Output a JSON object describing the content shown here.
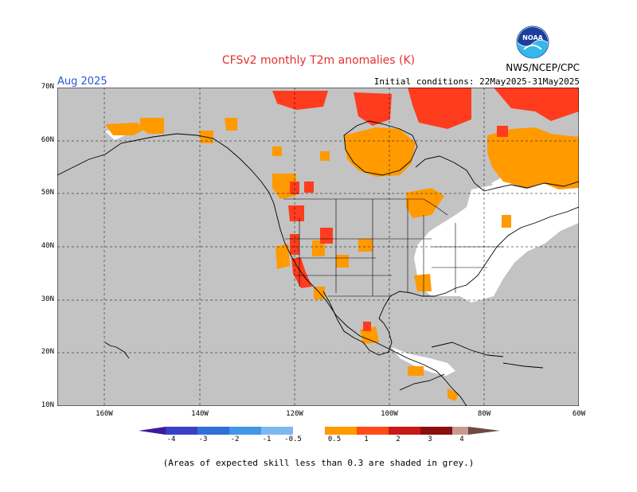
{
  "title": "CFSv2 monthly T2m anomalies (K)",
  "valid_month": "Aug 2025",
  "initial_conditions": "Initial conditions: 22May2025-31May2025",
  "agency": "NWS/NCEP/CPC",
  "logo_text": "NOAA",
  "footnote": "(Areas of expected skill less than 0.3 are shaded in grey.)",
  "lat_labels": [
    "70N",
    "60N",
    "50N",
    "40N",
    "30N",
    "20N",
    "10N"
  ],
  "lon_labels": [
    "160W",
    "140W",
    "120W",
    "100W",
    "80W",
    "60W"
  ],
  "colorbar": {
    "labels": [
      "-4",
      "-3",
      "-2",
      "-1",
      "-0.5",
      "0.5",
      "1",
      "2",
      "3",
      "4"
    ],
    "colors": [
      "#3b1b9b",
      "#3a3fc8",
      "#2f6fd8",
      "#3f97e6",
      "#7db9f0",
      "#ffffff",
      "#ff9a00",
      "#ff4a1a",
      "#c81818",
      "#8b0f0f",
      "#c79a8e",
      "#6e4a40"
    ]
  },
  "colors": {
    "grey": "#c3c3c3",
    "land_white": "#ffffff",
    "anom_0_5_1": "#ff9a00",
    "anom_1_2": "#ff3c1e",
    "title_red": "#e2312d",
    "month_blue": "#2a55d8"
  }
}
